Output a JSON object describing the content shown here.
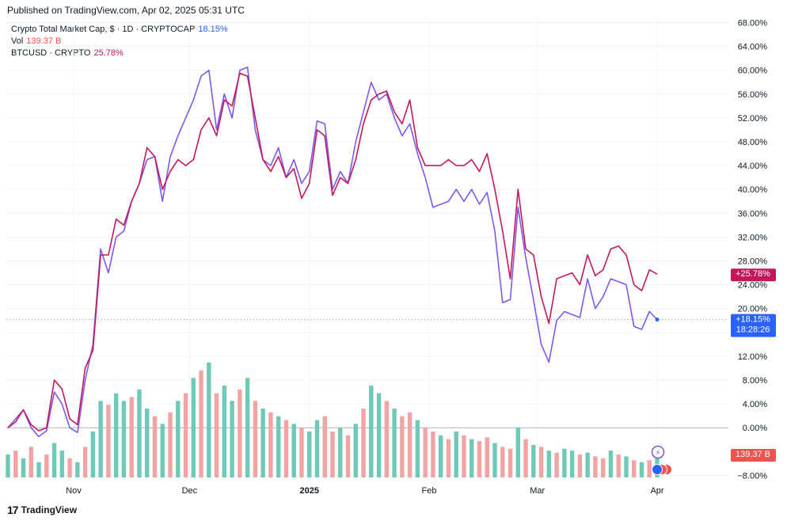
{
  "header": {
    "published": "Published on TradingView.com, Apr 02, 2025 05:31 UTC"
  },
  "legend": {
    "series1_name": "Crypto Total Market Cap, $ · 1D · CRYPTOCAP",
    "series1_value": "18.15%",
    "vol_name": "Vol",
    "vol_value": "139.37 B",
    "series2_name": "BTCUSD · CRYPTO",
    "series2_value": "25.78%"
  },
  "footer": {
    "brand": "TradingView",
    "logo": "17"
  },
  "colors": {
    "total_line": "#7e57f0",
    "btc_line": "#c2185b",
    "vol_up": "#6fc9b8",
    "vol_down": "#f4a3a3",
    "blue_badge": "#2962ff",
    "crimson_badge": "#c2185b",
    "red_badge": "#ef5350"
  },
  "chart_data": {
    "type": "line",
    "title": "",
    "x": [
      "2024-10-15",
      "2024-10-17",
      "2024-10-19",
      "2024-10-21",
      "2024-10-23",
      "2024-10-25",
      "2024-10-27",
      "2024-10-29",
      "2024-10-31",
      "2024-11-02",
      "2024-11-04",
      "2024-11-06",
      "2024-11-08",
      "2024-11-10",
      "2024-11-12",
      "2024-11-14",
      "2024-11-16",
      "2024-11-18",
      "2024-11-20",
      "2024-11-22",
      "2024-11-24",
      "2024-11-26",
      "2024-11-28",
      "2024-11-30",
      "2024-12-02",
      "2024-12-04",
      "2024-12-06",
      "2024-12-08",
      "2024-12-10",
      "2024-12-12",
      "2024-12-14",
      "2024-12-16",
      "2024-12-18",
      "2024-12-20",
      "2024-12-22",
      "2024-12-24",
      "2024-12-26",
      "2024-12-28",
      "2024-12-30",
      "2025-01-01",
      "2025-01-03",
      "2025-01-05",
      "2025-01-07",
      "2025-01-09",
      "2025-01-11",
      "2025-01-13",
      "2025-01-15",
      "2025-01-17",
      "2025-01-19",
      "2025-01-21",
      "2025-01-23",
      "2025-01-25",
      "2025-01-27",
      "2025-01-29",
      "2025-01-31",
      "2025-02-02",
      "2025-02-04",
      "2025-02-06",
      "2025-02-08",
      "2025-02-10",
      "2025-02-12",
      "2025-02-14",
      "2025-02-16",
      "2025-02-18",
      "2025-02-20",
      "2025-02-22",
      "2025-02-24",
      "2025-02-26",
      "2025-02-28",
      "2025-03-02",
      "2025-03-04",
      "2025-03-06",
      "2025-03-08",
      "2025-03-10",
      "2025-03-12",
      "2025-03-14",
      "2025-03-16",
      "2025-03-18",
      "2025-03-20",
      "2025-03-22",
      "2025-03-24",
      "2025-03-26",
      "2025-03-28",
      "2025-03-30",
      "2025-04-01"
    ],
    "series": [
      {
        "name": "Crypto Total Market Cap, $ · 1D · CRYPTOCAP",
        "values": [
          0.0,
          1.5,
          3.0,
          0.0,
          -1.5,
          -0.5,
          6.0,
          4.0,
          0.0,
          -0.8,
          8.0,
          14.0,
          30.0,
          26.0,
          32.0,
          33.0,
          38.0,
          41.0,
          45.0,
          45.5,
          38.0,
          45.5,
          49.0,
          52.0,
          55.0,
          59.0,
          60.0,
          50.0,
          56.0,
          52.0,
          60.0,
          60.5,
          50.0,
          45.0,
          44.0,
          47.0,
          42.0,
          45.0,
          41.0,
          43.0,
          51.5,
          51.0,
          40.0,
          43.0,
          41.0,
          48.0,
          53.0,
          58.0,
          55.0,
          56.0,
          52.0,
          49.0,
          51.0,
          46.0,
          42.0,
          37.0,
          37.5,
          38.0,
          40.0,
          38.0,
          40.0,
          37.5,
          39.5,
          33.0,
          21.0,
          21.5,
          37.0,
          28.5,
          21.5,
          14.0,
          11.0,
          18.0,
          19.5,
          19.0,
          18.5,
          25.0,
          20.0,
          22.0,
          25.0,
          24.5,
          24.0,
          17.0,
          16.5,
          19.5,
          18.15
        ]
      },
      {
        "name": "BTCUSD · CRYPTO",
        "values": [
          0.0,
          1.0,
          3.0,
          0.5,
          -0.5,
          0.0,
          8.0,
          6.5,
          1.5,
          0.5,
          10.0,
          13.0,
          29.0,
          29.0,
          35.0,
          34.0,
          38.0,
          41.0,
          47.0,
          45.5,
          40.0,
          43.0,
          45.0,
          44.0,
          45.0,
          50.0,
          52.0,
          49.0,
          55.0,
          54.0,
          59.5,
          59.0,
          52.0,
          45.0,
          43.0,
          45.5,
          42.0,
          43.5,
          38.5,
          41.0,
          50.0,
          49.0,
          39.0,
          42.0,
          41.0,
          45.0,
          51.0,
          55.0,
          56.0,
          56.5,
          53.0,
          51.0,
          55.0,
          47.0,
          44.0,
          44.0,
          44.0,
          45.0,
          44.0,
          44.0,
          45.0,
          43.0,
          46.0,
          40.0,
          33.0,
          25.0,
          40.0,
          30.0,
          29.0,
          22.0,
          17.5,
          25.0,
          25.5,
          26.0,
          24.0,
          29.0,
          25.5,
          26.5,
          30.0,
          30.5,
          29.0,
          24.0,
          23.0,
          26.5,
          25.78
        ]
      }
    ],
    "volume": {
      "name": "Vol",
      "values": [
        60,
        70,
        50,
        80,
        40,
        60,
        90,
        70,
        50,
        40,
        80,
        120,
        200,
        190,
        220,
        200,
        210,
        230,
        180,
        160,
        140,
        170,
        200,
        220,
        260,
        280,
        300,
        220,
        240,
        200,
        230,
        260,
        200,
        180,
        170,
        160,
        150,
        140,
        130,
        120,
        150,
        160,
        120,
        130,
        110,
        140,
        180,
        240,
        220,
        200,
        180,
        160,
        170,
        150,
        130,
        120,
        110,
        100,
        120,
        110,
        100,
        95,
        105,
        90,
        80,
        75,
        130,
        100,
        85,
        80,
        70,
        65,
        75,
        70,
        60,
        65,
        55,
        50,
        70,
        60,
        55,
        45,
        40,
        45,
        50
      ],
      "up": [
        true,
        false,
        true,
        false,
        true,
        false,
        true,
        true,
        false,
        true,
        false,
        true,
        true,
        false,
        true,
        true,
        false,
        true,
        true,
        false,
        true,
        false,
        true,
        false,
        true,
        false,
        true,
        false,
        true,
        true,
        false,
        true,
        false,
        true,
        false,
        true,
        false,
        true,
        false,
        true,
        true,
        false,
        false,
        true,
        false,
        true,
        false,
        true,
        true,
        false,
        true,
        false,
        false,
        true,
        false,
        false,
        true,
        false,
        true,
        false,
        true,
        false,
        false,
        true,
        false,
        false,
        true,
        false,
        true,
        false,
        true,
        false,
        true,
        true,
        false,
        true,
        false,
        false,
        true,
        false,
        true,
        false,
        true,
        false,
        true
      ]
    },
    "ylim": [
      -8,
      68
    ],
    "yticks": [
      "68.00%",
      "64.00%",
      "60.00%",
      "56.00%",
      "52.00%",
      "48.00%",
      "44.00%",
      "40.00%",
      "36.00%",
      "32.00%",
      "28.00%",
      "24.00%",
      "20.00%",
      "16.00%",
      "12.00%",
      "8.00%",
      "4.00%",
      "0.00%",
      "−8.00%"
    ],
    "ytick_values": [
      68,
      64,
      60,
      56,
      52,
      48,
      44,
      40,
      36,
      32,
      28,
      24,
      20,
      16,
      12,
      8,
      4,
      0,
      -8
    ],
    "xticks": [
      {
        "label": "Nov",
        "date": "2024-11-01",
        "bold": false
      },
      {
        "label": "Dec",
        "date": "2024-12-01",
        "bold": false
      },
      {
        "label": "2025",
        "date": "2025-01-01",
        "bold": true
      },
      {
        "label": "Feb",
        "date": "2025-02-01",
        "bold": false
      },
      {
        "label": "Mar",
        "date": "2025-03-01",
        "bold": false
      },
      {
        "label": "Apr",
        "date": "2025-04-01",
        "bold": false
      }
    ],
    "badges": {
      "btc": "+25.78%",
      "total": "+18.15%",
      "countdown": "18:28:26",
      "volume": "139.37 B"
    },
    "grid": true,
    "legend_position": "top-left"
  }
}
